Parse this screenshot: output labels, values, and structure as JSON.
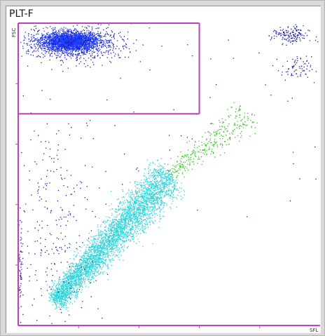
{
  "chart_data": {
    "type": "scatter",
    "title": "PLT-F",
    "xlabel": "SFL",
    "ylabel": "FSC",
    "xlim": [
      0,
      100
    ],
    "ylim": [
      0,
      100
    ],
    "axis_ticks_x": [
      20,
      40,
      60,
      80
    ],
    "axis_ticks_y": [
      20,
      40,
      60,
      80
    ],
    "gate": {
      "x": [
        0,
        60
      ],
      "y": [
        70,
        100
      ]
    },
    "colors": {
      "frame": "#d9d9d9",
      "axis": "#c040c0",
      "cluster_dark": "#1a1aa0",
      "cluster_bright": "#1e3cff",
      "cluster_cyan": "#2ed3d8",
      "cluster_green": "#30c020"
    },
    "series": [
      {
        "name": "",
        "cluster": "gated-blue",
        "center": [
          17,
          94
        ],
        "spread": [
          5,
          1.6
        ],
        "count": 2600,
        "color": "#1e3cff"
      },
      {
        "name": "",
        "cluster": "gated-blue-halo",
        "center": [
          19,
          93
        ],
        "spread": [
          9,
          3.2
        ],
        "count": 500,
        "color": "#1a1aa0"
      },
      {
        "name": "",
        "cluster": "upper-right",
        "center": [
          90,
          96
        ],
        "spread": [
          3,
          1.5
        ],
        "count": 160,
        "color": "#1a1aa0"
      },
      {
        "name": "",
        "cluster": "upper-right-lower",
        "center": [
          92,
          85
        ],
        "spread": [
          2.5,
          2
        ],
        "count": 70,
        "color": "#1a1aa0"
      },
      {
        "name": "",
        "cluster": "diagonal-cyan",
        "from": [
          12,
          8
        ],
        "to": [
          50,
          50
        ],
        "spread": 2.8,
        "count": 4200,
        "color": "#2ed3d8"
      },
      {
        "name": "",
        "cluster": "diagonal-green",
        "from": [
          50,
          50
        ],
        "to": [
          76,
          70
        ],
        "spread": 2.2,
        "count": 320,
        "color": "#30c020"
      },
      {
        "name": "",
        "cluster": "left-scatter",
        "center": [
          12,
          35
        ],
        "spread": [
          8,
          18
        ],
        "count": 260,
        "color": "#1a1aa0"
      },
      {
        "name": "",
        "cluster": "left-edge",
        "center": [
          0.6,
          18
        ],
        "spread": [
          0.5,
          8
        ],
        "count": 70,
        "color": "#1a1aa0"
      },
      {
        "name": "",
        "cluster": "background",
        "center": [
          55,
          70
        ],
        "spread": [
          28,
          18
        ],
        "count": 60,
        "color": "#1a1aa0"
      }
    ]
  }
}
